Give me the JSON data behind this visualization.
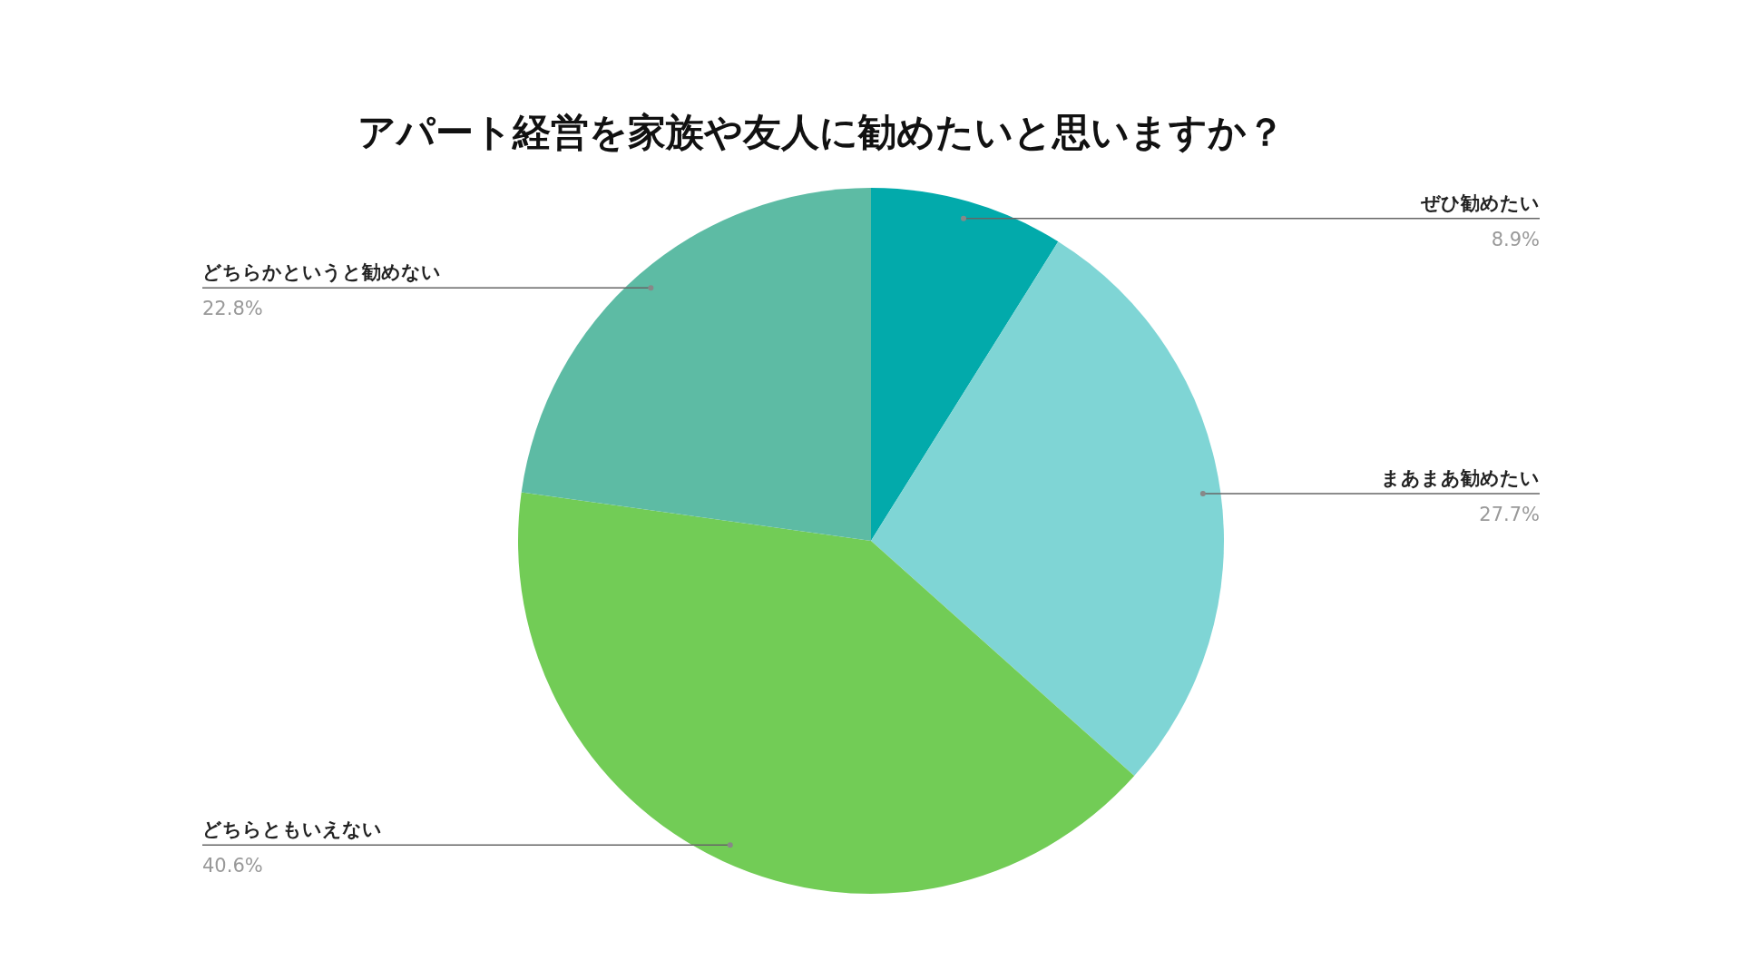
{
  "chart_data": {
    "type": "pie",
    "title": "アパート経営を家族や友人に勧めたいと思いますか？",
    "categories": [
      "ぜひ勧めたい",
      "まあまあ勧めたい",
      "どちらともいえない",
      "どちらかというと勧めない"
    ],
    "values": [
      8.9,
      27.7,
      40.6,
      22.8
    ],
    "colors": [
      "#02aaab",
      "#7fd5d5",
      "#72cc56",
      "#5dbba4"
    ],
    "value_labels": [
      "8.9%",
      "27.7%",
      "40.6%",
      "22.8%"
    ],
    "legend": false
  }
}
